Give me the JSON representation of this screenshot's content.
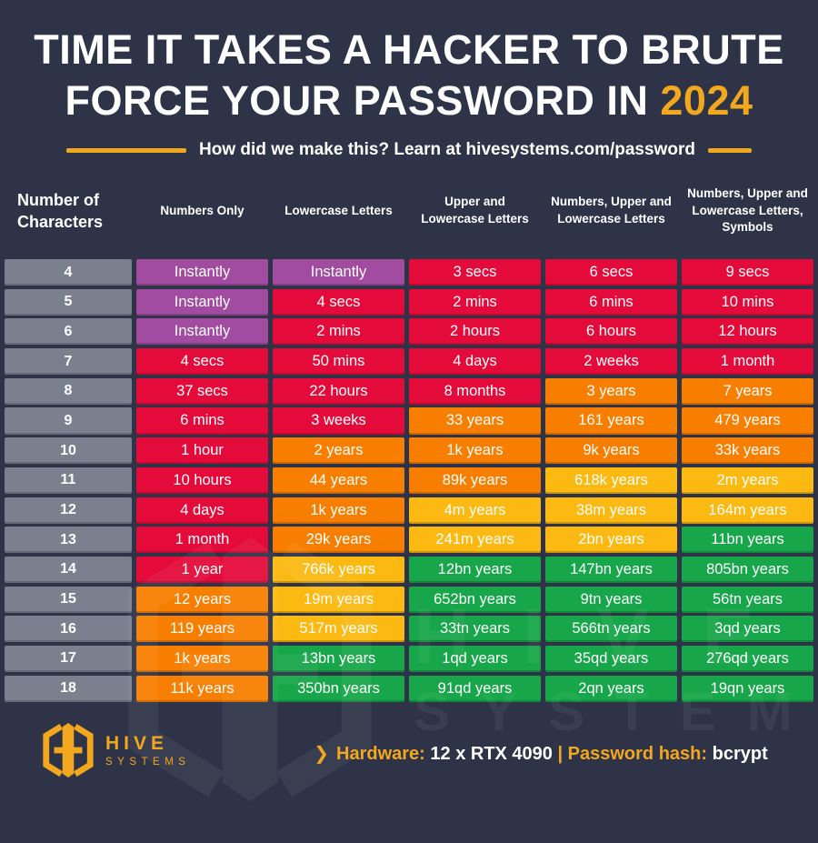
{
  "title": {
    "line1": "TIME IT TAKES A HACKER TO BRUTE",
    "line2_prefix": "FORCE YOUR PASSWORD IN ",
    "year": "2024"
  },
  "subtitle": "How did we make this? Learn at hivesystems.com/password",
  "chart_data": {
    "type": "table",
    "title": "Time It Takes a Hacker to Brute Force Your Password in 2024",
    "columns": [
      "Number of Characters",
      "Numbers Only",
      "Lowercase Letters",
      "Upper and Lowercase Letters",
      "Numbers, Upper and Lowercase Letters",
      "Numbers, Upper and Lowercase Letters, Symbols"
    ],
    "rows": [
      {
        "chars": "4",
        "values": [
          "Instantly",
          "Instantly",
          "3 secs",
          "6 secs",
          "9 secs"
        ],
        "colors": [
          "purple",
          "purple",
          "red",
          "red",
          "red"
        ]
      },
      {
        "chars": "5",
        "values": [
          "Instantly",
          "4 secs",
          "2 mins",
          "6 mins",
          "10 mins"
        ],
        "colors": [
          "purple",
          "red",
          "red",
          "red",
          "red"
        ]
      },
      {
        "chars": "6",
        "values": [
          "Instantly",
          "2 mins",
          "2 hours",
          "6 hours",
          "12 hours"
        ],
        "colors": [
          "purple",
          "red",
          "red",
          "red",
          "red"
        ]
      },
      {
        "chars": "7",
        "values": [
          "4 secs",
          "50 mins",
          "4 days",
          "2 weeks",
          "1 month"
        ],
        "colors": [
          "red",
          "red",
          "red",
          "red",
          "red"
        ]
      },
      {
        "chars": "8",
        "values": [
          "37 secs",
          "22 hours",
          "8 months",
          "3 years",
          "7 years"
        ],
        "colors": [
          "red",
          "red",
          "red",
          "orange",
          "orange"
        ]
      },
      {
        "chars": "9",
        "values": [
          "6 mins",
          "3 weeks",
          "33 years",
          "161 years",
          "479 years"
        ],
        "colors": [
          "red",
          "red",
          "orange",
          "orange",
          "orange"
        ]
      },
      {
        "chars": "10",
        "values": [
          "1 hour",
          "2 years",
          "1k years",
          "9k years",
          "33k years"
        ],
        "colors": [
          "red",
          "orange",
          "orange",
          "orange",
          "orange"
        ]
      },
      {
        "chars": "11",
        "values": [
          "10 hours",
          "44 years",
          "89k years",
          "618k years",
          "2m years"
        ],
        "colors": [
          "red",
          "orange",
          "orange",
          "yellow",
          "yellow"
        ]
      },
      {
        "chars": "12",
        "values": [
          "4 days",
          "1k years",
          "4m years",
          "38m years",
          "164m years"
        ],
        "colors": [
          "red",
          "orange",
          "yellow",
          "yellow",
          "yellow"
        ]
      },
      {
        "chars": "13",
        "values": [
          "1 month",
          "29k years",
          "241m years",
          "2bn years",
          "11bn years"
        ],
        "colors": [
          "red",
          "orange",
          "yellow",
          "yellow",
          "green"
        ]
      },
      {
        "chars": "14",
        "values": [
          "1 year",
          "766k years",
          "12bn years",
          "147bn years",
          "805bn years"
        ],
        "colors": [
          "red",
          "yellow",
          "green",
          "green",
          "green"
        ]
      },
      {
        "chars": "15",
        "values": [
          "12 years",
          "19m years",
          "652bn years",
          "9tn years",
          "56tn years"
        ],
        "colors": [
          "orange",
          "yellow",
          "green",
          "green",
          "green"
        ]
      },
      {
        "chars": "16",
        "values": [
          "119 years",
          "517m years",
          "33tn years",
          "566tn years",
          "3qd years"
        ],
        "colors": [
          "orange",
          "yellow",
          "green",
          "green",
          "green"
        ]
      },
      {
        "chars": "17",
        "values": [
          "1k years",
          "13bn years",
          "1qd years",
          "35qd years",
          "276qd years"
        ],
        "colors": [
          "orange",
          "green",
          "green",
          "green",
          "green"
        ]
      },
      {
        "chars": "18",
        "values": [
          "11k years",
          "350bn years",
          "91qd years",
          "2qn years",
          "19qn years"
        ],
        "colors": [
          "orange",
          "green",
          "green",
          "green",
          "green"
        ]
      }
    ]
  },
  "colors": {
    "background": "#2E3347",
    "accent": "#F1A71E",
    "purple": "#A14CA0",
    "red": "#E40B3B",
    "orange": "#F87E00",
    "yellow": "#FBB911",
    "green": "#17A64A",
    "gray": "#7B808F"
  },
  "watermark": {
    "line1": "HIVE",
    "line2": "SYSTEMS"
  },
  "footer": {
    "chevron": "❯",
    "hardware_label": "Hardware:",
    "hardware_value": "12 x RTX 4090",
    "separator": "|",
    "hash_label": "Password hash:",
    "hash_value": "bcrypt",
    "logo_name": "HIVE",
    "logo_sub": "SYSTEMS"
  }
}
